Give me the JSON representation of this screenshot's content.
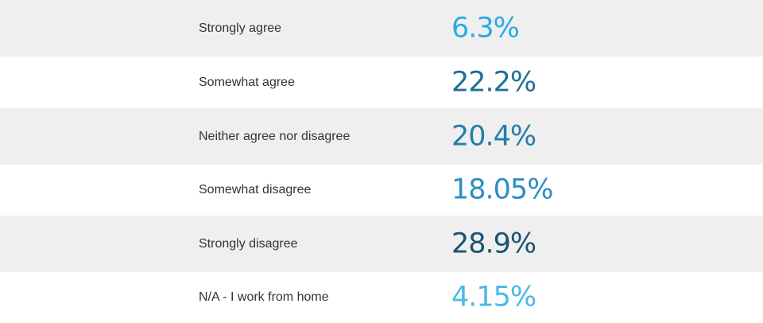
{
  "chart_data": {
    "type": "table",
    "rows": [
      {
        "label": "Strongly agree",
        "value_text": "6.3%",
        "value": 6.3,
        "color": "#29abe2"
      },
      {
        "label": "Somewhat agree",
        "value_text": "22.2%",
        "value": 22.2,
        "color": "#1f6f97"
      },
      {
        "label": "Neither agree nor disagree",
        "value_text": "20.4%",
        "value": 20.4,
        "color": "#237fa8"
      },
      {
        "label": "Somewhat disagree",
        "value_text": "18.05%",
        "value": 18.05,
        "color": "#2a8fc4"
      },
      {
        "label": "Strongly disagree",
        "value_text": "28.9%",
        "value": 28.9,
        "color": "#1b5470"
      },
      {
        "label": "N/A - I work from home",
        "value_text": "4.15%",
        "value": 4.15,
        "color": "#4cb8e8"
      }
    ]
  }
}
